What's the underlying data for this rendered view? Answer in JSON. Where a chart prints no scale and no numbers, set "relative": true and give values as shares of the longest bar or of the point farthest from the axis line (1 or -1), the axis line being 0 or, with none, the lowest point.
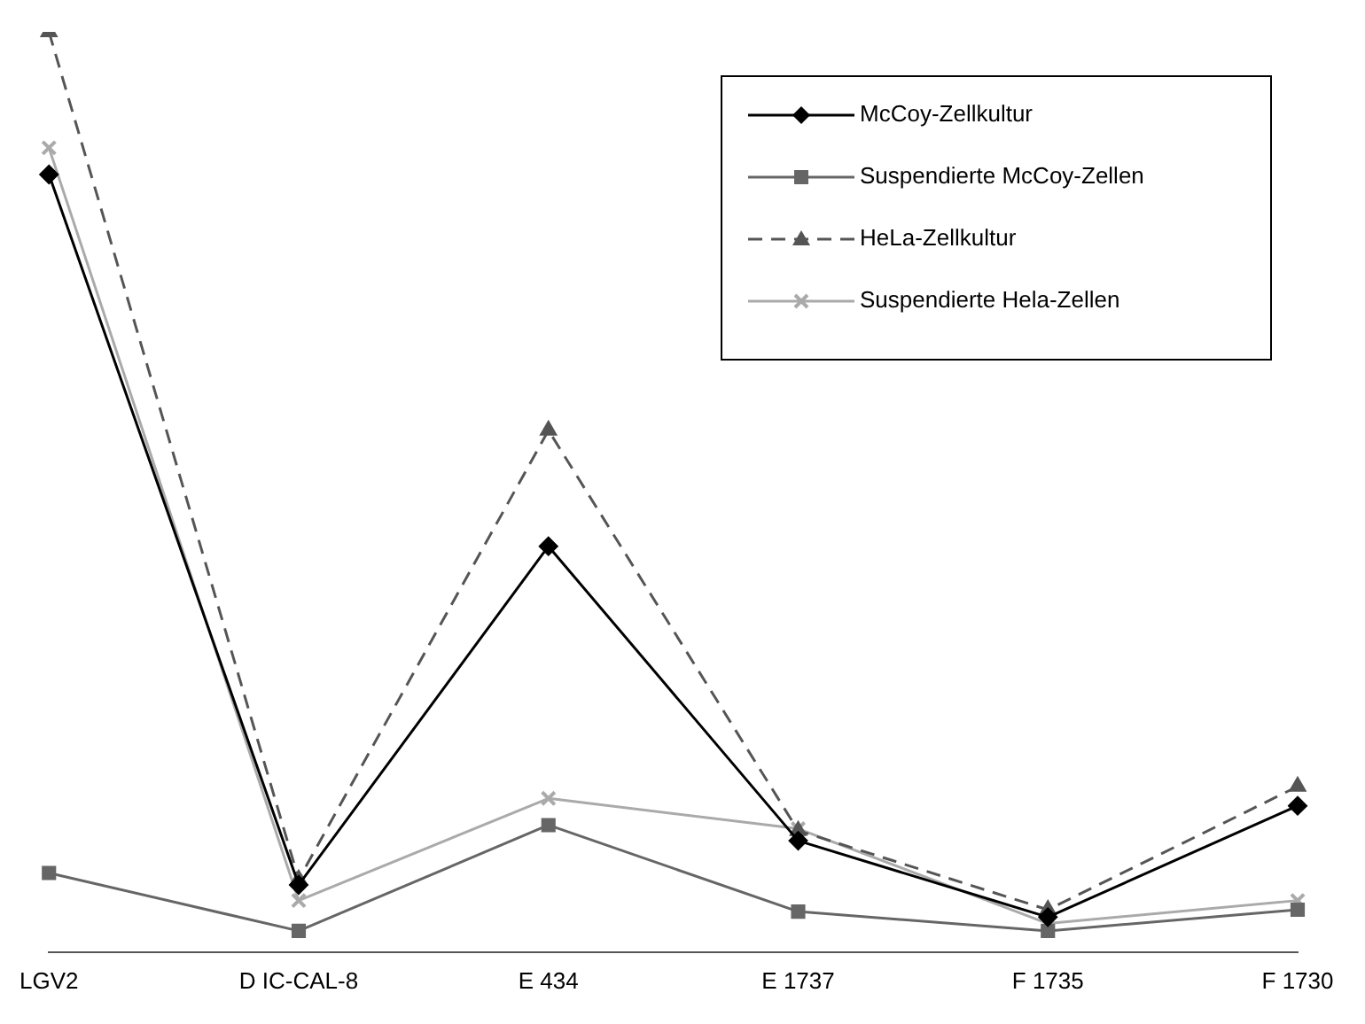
{
  "chart_data": {
    "type": "line",
    "relative": true,
    "categories": [
      "LGV2",
      "D IC-CAL-8",
      "E 434",
      "E 1737",
      "F 1735",
      "F 1730"
    ],
    "legend": "top right",
    "grid": false,
    "series": [
      {
        "name": "McCoy-Zellkultur",
        "color": "#000000",
        "marker": "diamond",
        "line_style": "solid",
        "values": [
          0.845,
          0.073,
          0.441,
          0.121,
          0.038,
          0.159
        ]
      },
      {
        "name": "Suspendierte McCoy-Zellen",
        "color": "#666666",
        "marker": "square",
        "line_style": "solid",
        "values": [
          0.086,
          0.023,
          0.138,
          0.044,
          0.023,
          0.046
        ]
      },
      {
        "name": "HeLa-Zellkultur",
        "color": "#555555",
        "marker": "triangle",
        "line_style": "dashed",
        "values": [
          1,
          0.079,
          0.567,
          0.132,
          0.046,
          0.18
        ]
      },
      {
        "name": "Suspendierte Hela-Zellen",
        "color": "#aaaaaa",
        "marker": "cross",
        "line_style": "solid",
        "values": [
          0.874,
          0.056,
          0.167,
          0.134,
          0.031,
          0.056
        ]
      }
    ]
  }
}
